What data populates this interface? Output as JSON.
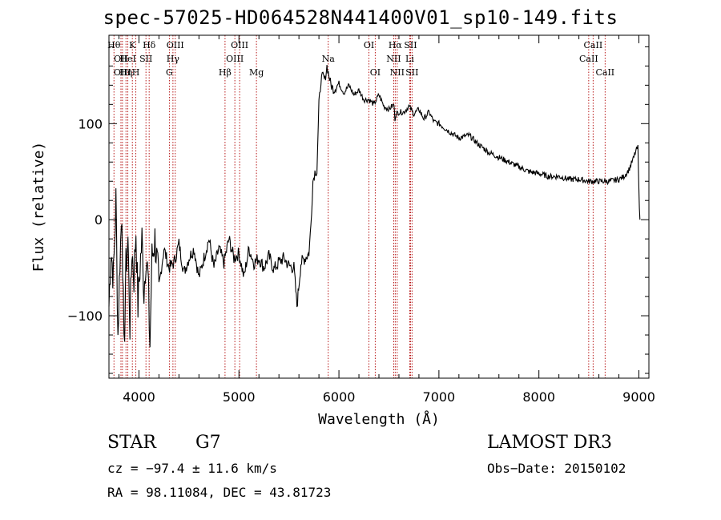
{
  "chart_data": {
    "type": "line",
    "title": "spec-57025-HD064528N441400V01_sp10-149.fits",
    "xlabel": "Wavelength (Å)",
    "ylabel": "Flux (relative)",
    "xlim": [
      3700,
      9100
    ],
    "ylim": [
      -165,
      192
    ],
    "xticks": [
      4000,
      5000,
      6000,
      7000,
      8000,
      9000
    ],
    "yticks": [
      -100,
      0,
      100
    ],
    "xtick_labels": [
      "4000",
      "5000",
      "6000",
      "7000",
      "8000",
      "9000"
    ],
    "ytick_labels": [
      "−100",
      "0",
      "100"
    ],
    "series": [
      {
        "name": "spectrum",
        "x": [
          3700,
          3720,
          3745,
          3770,
          3790,
          3810,
          3830,
          3850,
          3870,
          3890,
          3910,
          3930,
          3950,
          3970,
          3990,
          4010,
          4030,
          4050,
          4070,
          4090,
          4110,
          4130,
          4160,
          4200,
          4250,
          4300,
          4350,
          4400,
          4450,
          4500,
          4550,
          4600,
          4650,
          4700,
          4750,
          4800,
          4850,
          4900,
          4950,
          5000,
          5050,
          5100,
          5150,
          5200,
          5250,
          5300,
          5350,
          5400,
          5450,
          5500,
          5550,
          5580,
          5620,
          5660,
          5700,
          5720,
          5740,
          5760,
          5780,
          5800,
          5820,
          5840,
          5860,
          5880,
          5900,
          5920,
          5950,
          6000,
          6050,
          6100,
          6150,
          6200,
          6250,
          6300,
          6350,
          6400,
          6450,
          6500,
          6550,
          6560,
          6570,
          6600,
          6650,
          6700,
          6750,
          6800,
          6850,
          6900,
          6950,
          7000,
          7100,
          7200,
          7300,
          7400,
          7500,
          7600,
          7700,
          7800,
          7900,
          8000,
          8100,
          8200,
          8300,
          8400,
          8500,
          8600,
          8700,
          8800,
          8850,
          8900,
          8950,
          8970,
          8990,
          9000,
          9010
        ],
        "y": [
          -90,
          -30,
          -60,
          20,
          -120,
          -40,
          10,
          -140,
          -50,
          -20,
          -110,
          -30,
          -60,
          -10,
          -90,
          -50,
          -20,
          -75,
          -35,
          -60,
          -130,
          -40,
          -20,
          -70,
          -30,
          -50,
          -45,
          -25,
          -55,
          -40,
          -30,
          -60,
          -40,
          -20,
          -50,
          -30,
          -45,
          -20,
          -40,
          -35,
          -60,
          -30,
          -45,
          -40,
          -50,
          -38,
          -52,
          -44,
          -40,
          -48,
          -50,
          -90,
          -45,
          -40,
          -35,
          -5,
          40,
          50,
          50,
          120,
          145,
          150,
          145,
          160,
          150,
          140,
          135,
          142,
          132,
          140,
          130,
          135,
          125,
          125,
          120,
          130,
          118,
          115,
          120,
          105,
          110,
          112,
          112,
          118,
          110,
          115,
          105,
          112,
          102,
          100,
          92,
          85,
          88,
          78,
          70,
          65,
          60,
          55,
          50,
          48,
          45,
          45,
          42,
          42,
          40,
          40,
          40,
          42,
          45,
          52,
          65,
          72,
          75,
          30,
          0
        ]
      }
    ],
    "line_markers": [
      {
        "x": 3750,
        "label": "Hθ",
        "row": 1
      },
      {
        "x": 3820,
        "label": "OII",
        "row": 2
      },
      {
        "x": 3835,
        "label": "OIII",
        "row": 3
      },
      {
        "x": 3870,
        "label": "Hη",
        "row": 3
      },
      {
        "x": 3889,
        "label": "HeI",
        "row": 2
      },
      {
        "x": 3934,
        "label": "K",
        "row": 1
      },
      {
        "x": 3969,
        "label": "H",
        "row": 3
      },
      {
        "x": 4070,
        "label": "SII",
        "row": 2
      },
      {
        "x": 4102,
        "label": "Hδ",
        "row": 1
      },
      {
        "x": 4304,
        "label": "G",
        "row": 3
      },
      {
        "x": 4340,
        "label": "Hγ",
        "row": 2
      },
      {
        "x": 4363,
        "label": "OIII",
        "row": 1
      },
      {
        "x": 4861,
        "label": "Hβ",
        "row": 3
      },
      {
        "x": 4959,
        "label": "OIII",
        "row": 2
      },
      {
        "x": 5007,
        "label": "OIII",
        "row": 1
      },
      {
        "x": 5175,
        "label": "Mg",
        "row": 3
      },
      {
        "x": 5893,
        "label": "Na",
        "row": 2
      },
      {
        "x": 6300,
        "label": "OI",
        "row": 1
      },
      {
        "x": 6363,
        "label": "OI",
        "row": 3
      },
      {
        "x": 6548,
        "label": "NII",
        "row": 2
      },
      {
        "x": 6563,
        "label": "Hα",
        "row": 1
      },
      {
        "x": 6583,
        "label": "NII",
        "row": 3
      },
      {
        "x": 6708,
        "label": "Li",
        "row": 2
      },
      {
        "x": 6716,
        "label": "SII",
        "row": 1
      },
      {
        "x": 6731,
        "label": "SII",
        "row": 3
      },
      {
        "x": 8498,
        "label": "CaII",
        "row": 2
      },
      {
        "x": 8542,
        "label": "CaII",
        "row": 1
      },
      {
        "x": 8662,
        "label": "CaII",
        "row": 3
      }
    ],
    "colors": {
      "marker": "#b00000",
      "line": "#000000"
    }
  },
  "info": {
    "class": "STAR",
    "subclass": "G7",
    "survey": "LAMOST DR3",
    "cz": "cz = −97.4 ± 11.6 km/s",
    "obs_date": "Obs−Date: 20150102",
    "radec": "RA =  98.11084, DEC =  43.81723"
  }
}
